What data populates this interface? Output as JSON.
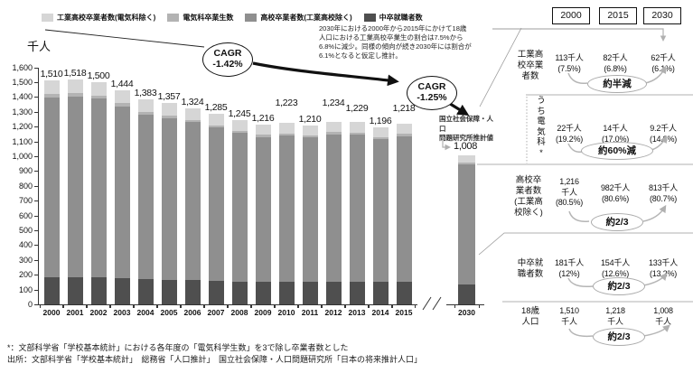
{
  "legend": {
    "items": [
      {
        "label": "工業高校卒業者数(電気科除く)",
        "color": "#d6d6d6"
      },
      {
        "label": "電気科卒業生数",
        "color": "#b3b3b3"
      },
      {
        "label": "高校卒業者数(工業高校除く)",
        "color": "#8f8f8f"
      },
      {
        "label": "中卒就職者数",
        "color": "#4f4f4f"
      }
    ]
  },
  "axis": {
    "unit_label": "千人",
    "y_tick_labels": [
      "0",
      "100",
      "200",
      "300",
      "400",
      "500",
      "600",
      "700",
      "800",
      "900",
      "1,000",
      "1,100",
      "1,200",
      "1,300",
      "1,400",
      "1,500",
      "1,600"
    ],
    "y_max": 1600
  },
  "chart_data": {
    "type": "bar",
    "stacked": true,
    "unit": "千人",
    "categories": [
      "2000",
      "2001",
      "2002",
      "2003",
      "2004",
      "2005",
      "2006",
      "2007",
      "2008",
      "2009",
      "2010",
      "2011",
      "2012",
      "2013",
      "2014",
      "2015",
      "2030"
    ],
    "totals": [
      1510,
      1518,
      1500,
      1444,
      1383,
      1357,
      1324,
      1285,
      1245,
      1216,
      1223,
      1210,
      1234,
      1229,
      1196,
      1218,
      1008
    ],
    "total_labels": [
      "1,510",
      "1,518",
      "1,500",
      "1,444",
      "1,383",
      "1,357",
      "1,324",
      "1,285",
      "1,245",
      "1,216",
      "1,223",
      "1,210",
      "1,234",
      "1,229",
      "1,196",
      "1,218",
      "1,008"
    ],
    "segment_order_bottom_to_top": [
      "中卒就職者数",
      "高校卒業者数(工業高校除く)",
      "電気科卒業生数",
      "工業高校卒業者数(電気科除く)"
    ],
    "segment_values_known": {
      "2000": [
        181,
        1216,
        22,
        91
      ],
      "2015": [
        154,
        982,
        14,
        68
      ],
      "2030": [
        133,
        813,
        9.2,
        52.8
      ]
    },
    "ylabel": "千人",
    "ylim": [
      0,
      1600
    ],
    "axis_break_before": "2030",
    "grid": false
  },
  "cagr": {
    "bubble1": {
      "line1": "CAGR",
      "line2": "-1.42%"
    },
    "bubble2": {
      "line1": "CAGR",
      "line2": "-1.25%"
    }
  },
  "annotation": {
    "lines": [
      "2030年における2000年から2015年にかけて18歳",
      "人口における工業高校卒業生の割合は7.5%から",
      "6.8%に減少。同様の傾向が続き2030年には割合が",
      "6.1%となると仮定し推計。"
    ]
  },
  "projection_note": {
    "lines": [
      "国立社会保障・人口",
      "問題研究所推計値"
    ]
  },
  "panel": {
    "col_headers": [
      "2000",
      "2015",
      "2030"
    ],
    "rows": [
      {
        "label_lines": [
          "工業高",
          "校卒業",
          "者数"
        ],
        "values": [
          [
            "113千人",
            "(7.5%)"
          ],
          [
            "82千人",
            "(6.8%)"
          ],
          [
            "62千人",
            "(6.1%)"
          ]
        ],
        "badge": "約半減"
      },
      {
        "label_vertical": "うち電気科*",
        "values": [
          [
            "22千人",
            "(19.2%)"
          ],
          [
            "14千人",
            "(17.0%)"
          ],
          [
            "9.2千人",
            "(14.8%)"
          ]
        ],
        "badge": "約60%減"
      },
      {
        "label_lines": [
          "高校卒",
          "業者数",
          "(工業高",
          "校除く)"
        ],
        "values": [
          [
            "1,216",
            "千人",
            "(80.5%)"
          ],
          [
            "982千人",
            "(80.6%)"
          ],
          [
            "813千人",
            "(80.7%)"
          ]
        ],
        "badge": "約2/3"
      },
      {
        "label_lines": [
          "中卒就",
          "職者数"
        ],
        "values": [
          [
            "181千人",
            "(12%)"
          ],
          [
            "154千人",
            "(12.6%)"
          ],
          [
            "133千人",
            "(13.2%)"
          ]
        ],
        "badge": "約2/3"
      },
      {
        "label_lines": [
          "18歳",
          "人口"
        ],
        "values": [
          [
            "1,510",
            "千人"
          ],
          [
            "1,218",
            "千人"
          ],
          [
            "1,008",
            "千人"
          ]
        ],
        "badge": "約2/3"
      }
    ]
  },
  "footnotes": {
    "line1": "*：文部科学省「学校基本統計」における各年度の「電気科学生数」を3で除し卒業者数とした",
    "line2": "出所：文部科学省「学校基本統計」　総務省「人口推計」　国立社会保障・人口問題研究所「日本の将来推計人口」"
  }
}
